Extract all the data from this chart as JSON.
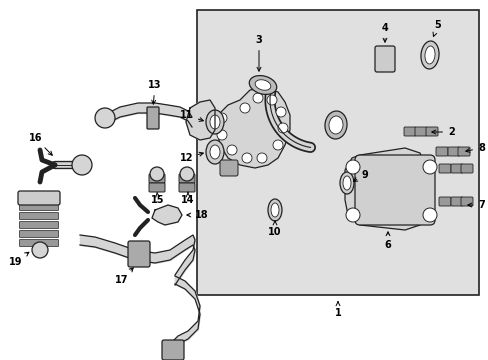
{
  "bg_color": "#ffffff",
  "box_bg": "#e0e0e0",
  "line_color": "#222222",
  "figsize": [
    4.89,
    3.6
  ],
  "dpi": 100
}
